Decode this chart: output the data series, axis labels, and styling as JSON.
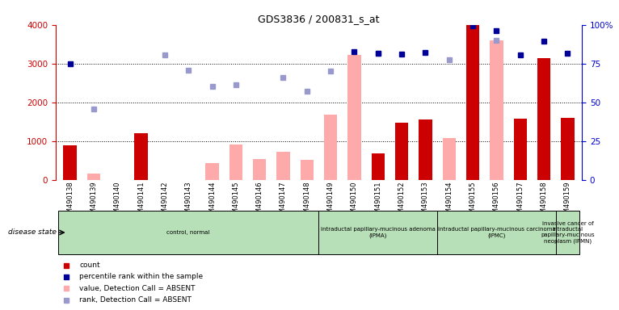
{
  "title": "GDS3836 / 200831_s_at",
  "samples": [
    "GSM490138",
    "GSM490139",
    "GSM490140",
    "GSM490141",
    "GSM490142",
    "GSM490143",
    "GSM490144",
    "GSM490145",
    "GSM490146",
    "GSM490147",
    "GSM490148",
    "GSM490149",
    "GSM490150",
    "GSM490151",
    "GSM490152",
    "GSM490153",
    "GSM490154",
    "GSM490155",
    "GSM490156",
    "GSM490157",
    "GSM490158",
    "GSM490159"
  ],
  "count_present": [
    900,
    0,
    0,
    1200,
    0,
    0,
    0,
    0,
    0,
    0,
    0,
    0,
    0,
    680,
    1480,
    1550,
    0,
    4000,
    0,
    1580,
    3130,
    1590
  ],
  "value_absent": [
    0,
    155,
    0,
    0,
    0,
    0,
    430,
    920,
    530,
    720,
    510,
    1680,
    3230,
    0,
    0,
    0,
    1080,
    0,
    3590,
    0,
    0,
    0
  ],
  "rank_absent": [
    0,
    1820,
    0,
    0,
    3220,
    2820,
    2420,
    2450,
    0,
    2640,
    2280,
    2810,
    0,
    3260,
    0,
    0,
    3100,
    0,
    3600,
    0,
    0,
    0
  ],
  "rank_present": [
    3000,
    0,
    0,
    0,
    0,
    0,
    0,
    0,
    0,
    0,
    0,
    0,
    3300,
    3270,
    3240,
    3280,
    0,
    3970,
    3840,
    3230,
    3580,
    3270
  ],
  "ylim_left": [
    0,
    4000
  ],
  "ylim_right": [
    0,
    100
  ],
  "yticks_left": [
    0,
    1000,
    2000,
    3000,
    4000
  ],
  "yticks_right": [
    0,
    25,
    50,
    75,
    100
  ],
  "groups": [
    {
      "label": "control, normal",
      "start": 0,
      "end": 11,
      "color": "#b8e0b8"
    },
    {
      "label": "intraductal papillary-mucinous adenoma\n(IPMA)",
      "start": 11,
      "end": 16,
      "color": "#b8e0b8"
    },
    {
      "label": "intraductal papillary-mucinous carcinoma\n(IPMC)",
      "start": 16,
      "end": 21,
      "color": "#b8e0b8"
    },
    {
      "label": "invasive cancer of\nintraductal\npapillary-mucinous\nneoplasm (IPMN)",
      "start": 21,
      "end": 22,
      "color": "#b8e0b8"
    }
  ],
  "bar_width": 0.55,
  "left_axis_color": "#cc0000",
  "right_axis_color": "#0000cc",
  "count_color": "#cc0000",
  "absent_bar_color": "#ffaaaa",
  "rank_present_color": "#000099",
  "rank_absent_color": "#9999cc"
}
